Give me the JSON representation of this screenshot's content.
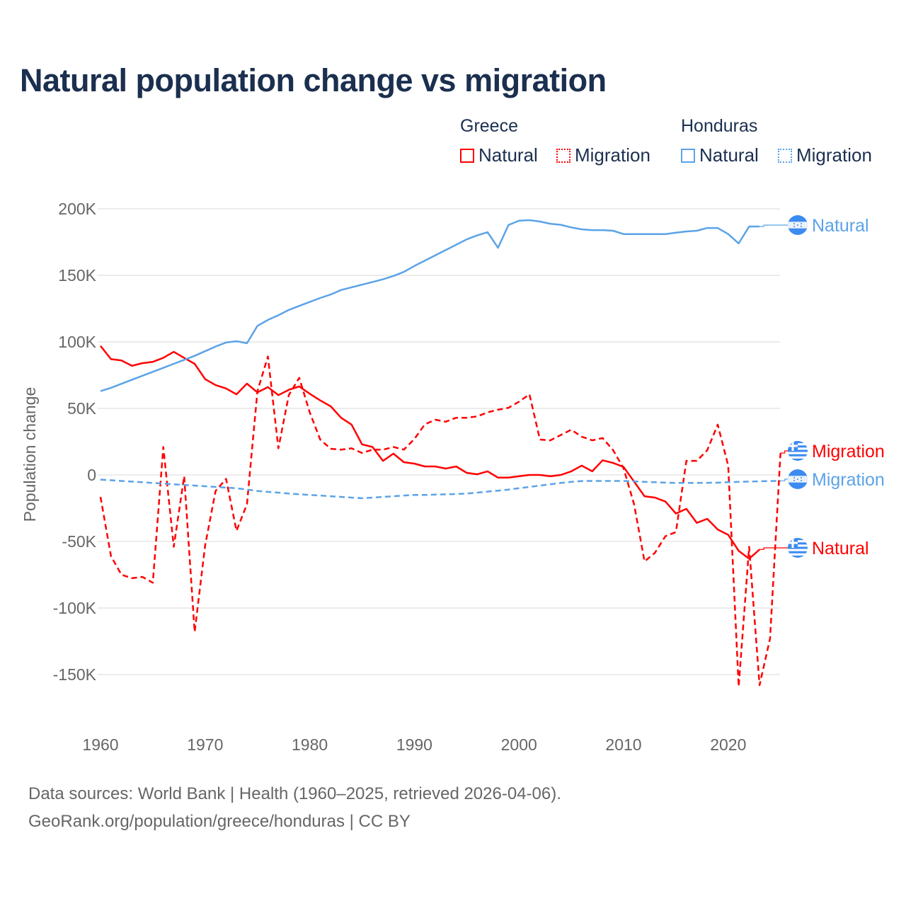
{
  "colors": {
    "greece": "#ff0000",
    "honduras": "#5ba3e8",
    "grid": "#e6e6e6",
    "axis_text": "#666666",
    "title": "#1b2f4f"
  },
  "chart_data": {
    "type": "line",
    "title": "Natural population change vs migration",
    "xlabel": "",
    "ylabel": "Population change",
    "xlim": [
      1960,
      2025
    ],
    "ylim": [
      -160000,
      200000
    ],
    "x_ticks": [
      1960,
      1970,
      1980,
      1990,
      2000,
      2010,
      2020
    ],
    "x_tick_labels": [
      "1960",
      "1970",
      "1980",
      "1990",
      "2000",
      "2010",
      "2020"
    ],
    "y_ticks": [
      200000,
      150000,
      100000,
      50000,
      0,
      -50000,
      -100000,
      -150000
    ],
    "y_tick_labels": [
      "200K",
      "150K",
      "100K",
      "50K",
      "0",
      "-50K",
      "-100K",
      "-150K"
    ],
    "grid": true,
    "legend": {
      "placement": "top-right",
      "groups": [
        {
          "label": "Greece",
          "items": [
            {
              "label": "Natural",
              "style": "solid"
            },
            {
              "label": "Migration",
              "style": "dotted"
            }
          ]
        },
        {
          "label": "Honduras",
          "items": [
            {
              "label": "Natural",
              "style": "solid"
            },
            {
              "label": "Migration",
              "style": "dotted"
            }
          ]
        }
      ]
    },
    "series": [
      {
        "name": "Greece Natural",
        "country": "greece",
        "dash": false,
        "end_label": "Natural",
        "x_start": 1960,
        "values": [
          97,
          87,
          86,
          82,
          84,
          85,
          88,
          92.5,
          88,
          83.5,
          72,
          67.5,
          65,
          60.6,
          68.6,
          62,
          66,
          60,
          64,
          66.5,
          61,
          56,
          51.6,
          43,
          37.8,
          23,
          21,
          10.6,
          16,
          9.6,
          8.5,
          6.4,
          6.4,
          4.8,
          6.4,
          1.6,
          0.5,
          2.7,
          -2,
          -2,
          -1,
          0,
          0,
          -1,
          0,
          2.7,
          7,
          2.7,
          11,
          9,
          6,
          -5,
          -16,
          -17,
          -20,
          -29,
          -25.5,
          -36,
          -33,
          -41,
          -45,
          -57,
          -63,
          -56
        ]
      },
      {
        "name": "Greece Migration",
        "country": "greece",
        "dash": true,
        "end_label": "Migration",
        "x_start": 1960,
        "values": [
          -16.5,
          -61,
          -75,
          -77.6,
          -76.6,
          -81,
          21,
          -54,
          -1,
          -118,
          -53,
          -12,
          -3,
          -42,
          -22,
          63,
          89,
          20,
          60,
          73,
          47,
          26.6,
          19.7,
          19,
          20,
          16.5,
          19,
          19,
          21,
          19,
          27,
          38,
          41.5,
          40,
          43,
          43,
          44,
          47,
          49,
          50.5,
          55,
          60.6,
          26.6,
          26,
          30,
          34,
          28.7,
          26,
          27.7,
          18.6,
          5,
          -22,
          -65,
          -58.5,
          -46,
          -43,
          10.6,
          10.6,
          18.6,
          37.8,
          7,
          -159,
          -54,
          -158,
          -123,
          16.5
        ]
      },
      {
        "name": "Honduras Natural",
        "country": "honduras",
        "dash": false,
        "end_label": "Natural",
        "x_start": 1960,
        "values": [
          63,
          65.5,
          68.5,
          71.5,
          74.5,
          77.5,
          80.5,
          83.5,
          86.5,
          89.5,
          93,
          96.5,
          99.5,
          100.5,
          99,
          112,
          116.5,
          120,
          124,
          127,
          130,
          133,
          135.6,
          139,
          141,
          143,
          145,
          147,
          149.5,
          152.6,
          157,
          161,
          165,
          169,
          173,
          177,
          180,
          182.4,
          170.7,
          187.8,
          191,
          191.5,
          190.4,
          188.8,
          188,
          186,
          184.6,
          184,
          184,
          183.5,
          181,
          181,
          181,
          181,
          181,
          182,
          183,
          183.5,
          185.6,
          185.6,
          181,
          174,
          186.7,
          186.7
        ]
      },
      {
        "name": "Honduras Migration",
        "country": "honduras",
        "dash": true,
        "end_label": "Migration",
        "x_start": 1960,
        "values": [
          -3.5,
          -4,
          -4.5,
          -5,
          -5.5,
          -6,
          -6.5,
          -7,
          -7.5,
          -8,
          -8.5,
          -9,
          -9.5,
          -10,
          -11,
          -12,
          -12.7,
          -13.3,
          -14,
          -14.5,
          -15,
          -15.5,
          -16,
          -16.5,
          -17,
          -17.5,
          -17,
          -16.5,
          -16,
          -15.5,
          -15,
          -15,
          -14.8,
          -14.6,
          -14.3,
          -14,
          -13.3,
          -12.5,
          -11.8,
          -11,
          -10,
          -9,
          -8,
          -7,
          -6,
          -5.2,
          -4.6,
          -4.5,
          -4.5,
          -4.5,
          -4.5,
          -4.8,
          -5.2,
          -5.5,
          -5.8,
          -6,
          -6,
          -6,
          -5.9,
          -5.8,
          -5.5,
          -5.2,
          -5,
          -4.8,
          -4.6,
          -4.5
        ]
      }
    ],
    "value_unit": "thousands"
  },
  "footer": {
    "line1": "Data sources: World Bank | Health (1960–2025, retrieved 2026-04-06).",
    "line2": "GeoRank.org/population/greece/honduras | CC BY"
  }
}
